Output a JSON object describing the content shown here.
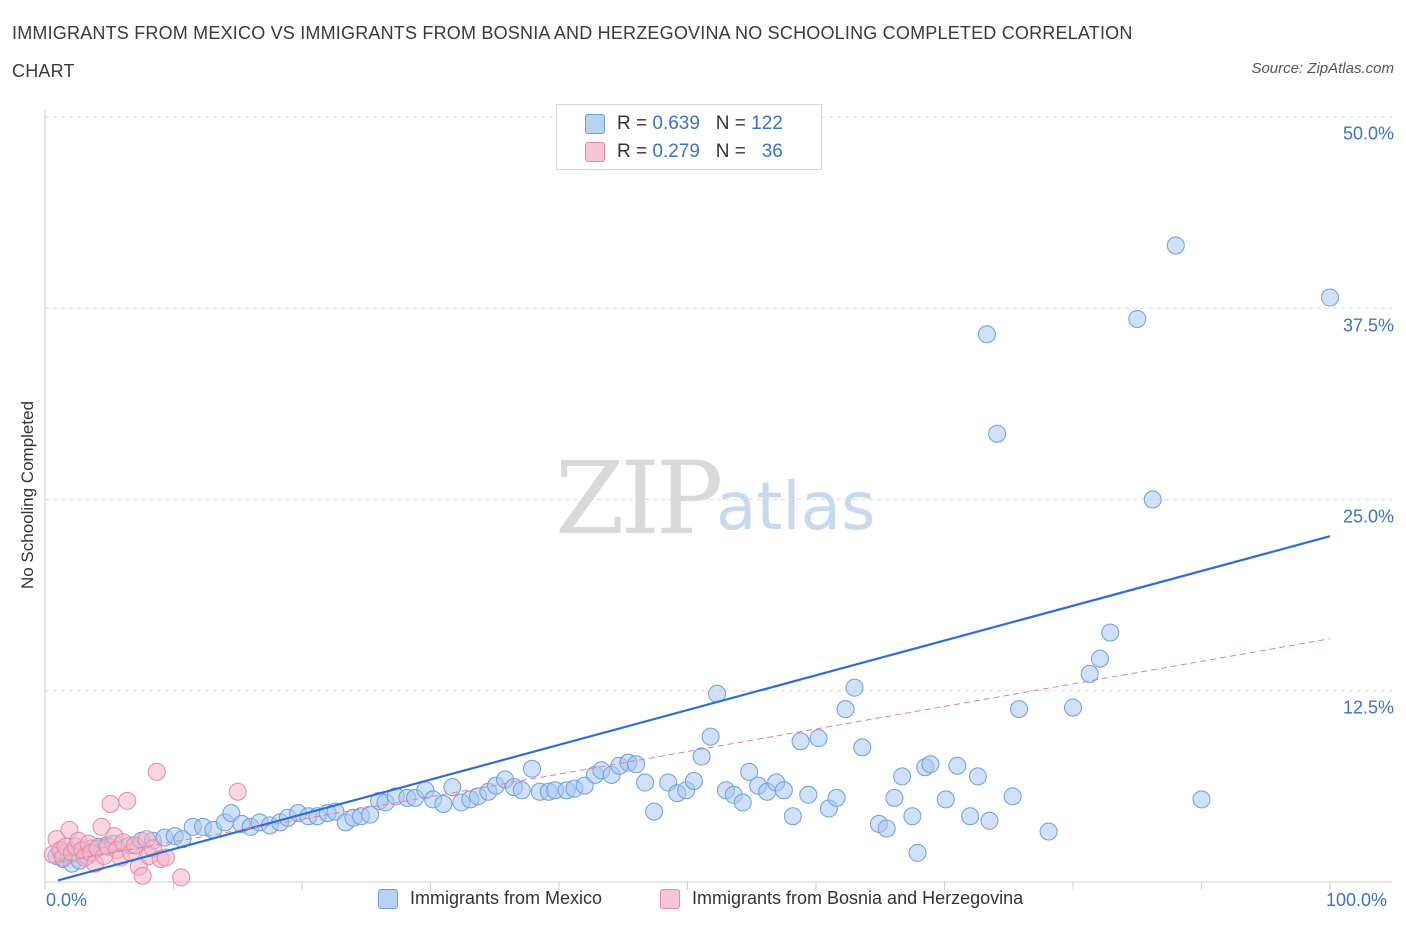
{
  "title": "IMMIGRANTS FROM MEXICO VS IMMIGRANTS FROM BOSNIA AND HERZEGOVINA NO SCHOOLING COMPLETED CORRELATION CHART",
  "source": "Source: ZipAtlas.com",
  "watermark": {
    "zip": "ZIP",
    "atlas": "atlas"
  },
  "legend": {
    "mexico": {
      "r_label": "R =",
      "r_value": "0.639",
      "n_label": "N =",
      "n_value": "122",
      "color": "#a9c6ee"
    },
    "bosnia": {
      "r_label": "R =",
      "r_value": "0.279",
      "n_label": "N =",
      "n_value": "36",
      "color": "#f4b4c8"
    }
  },
  "chart_data": {
    "type": "scatter",
    "title": "IMMIGRANTS FROM MEXICO VS IMMIGRANTS FROM BOSNIA AND HERZEGOVINA NO SCHOOLING COMPLETED CORRELATION CHART",
    "xlabel": "",
    "ylabel": "No Schooling Completed",
    "xlim": [
      0,
      100
    ],
    "ylim": [
      0,
      50
    ],
    "x_tick_labels": [
      "0.0%",
      "100.0%"
    ],
    "y_tick_labels": [
      "50.0%",
      "37.5%",
      "25.0%",
      "12.5%"
    ],
    "y_ticks": [
      50,
      37.5,
      25,
      12.5
    ],
    "grid": true,
    "series": [
      {
        "name": "Immigrants from Mexico",
        "color": "#a9c6ee",
        "stroke": "#6b9fe0",
        "trend": {
          "x": [
            1,
            100
          ],
          "y": [
            0.1,
            22.6
          ],
          "color": "#2f6fd1",
          "style": "solid"
        },
        "points": [
          [
            0.9,
            1.7
          ],
          [
            1.4,
            1.5
          ],
          [
            1.9,
            1.8
          ],
          [
            2.4,
            1.9
          ],
          [
            3.0,
            2.0
          ],
          [
            3.6,
            2.2
          ],
          [
            4.2,
            2.3
          ],
          [
            4.8,
            2.4
          ],
          [
            5.3,
            2.5
          ],
          [
            1.2,
            2.0
          ],
          [
            2.1,
            1.2
          ],
          [
            2.7,
            1.4
          ],
          [
            3.3,
            1.7
          ],
          [
            6.6,
            2.4
          ],
          [
            7.5,
            2.7
          ],
          [
            8.4,
            2.7
          ],
          [
            9.3,
            2.9
          ],
          [
            10.1,
            3.0
          ],
          [
            10.7,
            2.8
          ],
          [
            11.5,
            3.6
          ],
          [
            12.3,
            3.6
          ],
          [
            13.1,
            3.4
          ],
          [
            14.0,
            3.9
          ],
          [
            14.5,
            4.5
          ],
          [
            15.3,
            3.8
          ],
          [
            16.0,
            3.6
          ],
          [
            16.7,
            3.9
          ],
          [
            17.5,
            3.7
          ],
          [
            18.3,
            3.9
          ],
          [
            18.9,
            4.2
          ],
          [
            19.7,
            4.5
          ],
          [
            20.5,
            4.3
          ],
          [
            21.2,
            4.3
          ],
          [
            22.0,
            4.5
          ],
          [
            22.6,
            4.6
          ],
          [
            23.4,
            3.9
          ],
          [
            24.0,
            4.2
          ],
          [
            24.6,
            4.3
          ],
          [
            25.3,
            4.4
          ],
          [
            26.0,
            5.3
          ],
          [
            26.5,
            5.2
          ],
          [
            27.3,
            5.6
          ],
          [
            28.2,
            5.5
          ],
          [
            28.8,
            5.5
          ],
          [
            29.6,
            6.0
          ],
          [
            30.2,
            5.4
          ],
          [
            31.0,
            5.1
          ],
          [
            31.7,
            6.2
          ],
          [
            32.4,
            5.2
          ],
          [
            33.1,
            5.4
          ],
          [
            33.7,
            5.6
          ],
          [
            34.5,
            5.9
          ],
          [
            35.1,
            6.3
          ],
          [
            35.8,
            6.7
          ],
          [
            36.5,
            6.2
          ],
          [
            37.1,
            6.0
          ],
          [
            37.9,
            7.4
          ],
          [
            38.5,
            5.9
          ],
          [
            39.2,
            5.9
          ],
          [
            39.7,
            6.0
          ],
          [
            40.6,
            6.0
          ],
          [
            41.2,
            6.1
          ],
          [
            42.0,
            6.3
          ],
          [
            42.8,
            7.0
          ],
          [
            43.3,
            7.3
          ],
          [
            44.1,
            7.0
          ],
          [
            44.7,
            7.6
          ],
          [
            45.4,
            7.8
          ],
          [
            46.0,
            7.7
          ],
          [
            46.7,
            6.5
          ],
          [
            47.4,
            4.6
          ],
          [
            48.5,
            6.5
          ],
          [
            49.2,
            5.8
          ],
          [
            49.9,
            6.0
          ],
          [
            50.5,
            6.6
          ],
          [
            51.1,
            8.2
          ],
          [
            51.8,
            9.5
          ],
          [
            52.3,
            12.3
          ],
          [
            53.0,
            6.0
          ],
          [
            53.6,
            5.7
          ],
          [
            54.3,
            5.2
          ],
          [
            54.8,
            7.2
          ],
          [
            55.5,
            6.3
          ],
          [
            56.2,
            5.9
          ],
          [
            56.9,
            6.5
          ],
          [
            57.5,
            6.0
          ],
          [
            58.2,
            4.3
          ],
          [
            58.8,
            9.2
          ],
          [
            59.4,
            5.7
          ],
          [
            60.2,
            9.4
          ],
          [
            61.0,
            4.8
          ],
          [
            61.6,
            5.5
          ],
          [
            62.3,
            11.3
          ],
          [
            63.0,
            12.7
          ],
          [
            63.6,
            8.8
          ],
          [
            64.9,
            3.8
          ],
          [
            65.5,
            3.5
          ],
          [
            66.1,
            5.5
          ],
          [
            66.7,
            6.9
          ],
          [
            67.5,
            4.3
          ],
          [
            67.9,
            1.9
          ],
          [
            68.5,
            7.5
          ],
          [
            68.9,
            7.7
          ],
          [
            70.1,
            5.4
          ],
          [
            71.0,
            7.6
          ],
          [
            72.0,
            4.3
          ],
          [
            72.6,
            6.9
          ],
          [
            73.5,
            4.0
          ],
          [
            74.1,
            29.3
          ],
          [
            73.3,
            35.8
          ],
          [
            75.3,
            5.6
          ],
          [
            75.8,
            11.3
          ],
          [
            78.1,
            3.3
          ],
          [
            80.0,
            11.4
          ],
          [
            81.3,
            13.6
          ],
          [
            82.1,
            14.6
          ],
          [
            82.9,
            16.3
          ],
          [
            85.0,
            36.8
          ],
          [
            86.2,
            25.0
          ],
          [
            88.0,
            41.6
          ],
          [
            90.0,
            5.4
          ],
          [
            100.0,
            38.2
          ]
        ]
      },
      {
        "name": "Immigrants from Bosnia and Herzegovina",
        "color": "#f4b4c8",
        "stroke": "#e58aa9",
        "trend": {
          "x": [
            1,
            100
          ],
          "y": [
            1.3,
            15.9
          ],
          "color": "#e07fa0",
          "style": "dashed"
        },
        "points": [
          [
            0.6,
            1.8
          ],
          [
            0.9,
            2.8
          ],
          [
            1.2,
            2.1
          ],
          [
            1.4,
            1.6
          ],
          [
            1.6,
            2.3
          ],
          [
            1.9,
            3.4
          ],
          [
            2.1,
            1.9
          ],
          [
            2.4,
            2.3
          ],
          [
            2.6,
            2.7
          ],
          [
            2.9,
            2.1
          ],
          [
            3.1,
            1.6
          ],
          [
            3.4,
            2.5
          ],
          [
            3.6,
            1.9
          ],
          [
            3.9,
            1.2
          ],
          [
            4.1,
            2.2
          ],
          [
            4.4,
            3.6
          ],
          [
            4.6,
            1.7
          ],
          [
            4.9,
            2.3
          ],
          [
            5.1,
            5.1
          ],
          [
            5.4,
            3.0
          ],
          [
            5.6,
            2.1
          ],
          [
            5.9,
            1.6
          ],
          [
            6.1,
            2.6
          ],
          [
            6.4,
            5.3
          ],
          [
            6.7,
            1.9
          ],
          [
            7.0,
            2.4
          ],
          [
            7.3,
            1.0
          ],
          [
            7.6,
            0.4
          ],
          [
            7.9,
            2.8
          ],
          [
            8.1,
            1.7
          ],
          [
            8.4,
            2.2
          ],
          [
            8.7,
            7.2
          ],
          [
            9.0,
            1.5
          ],
          [
            9.4,
            1.6
          ],
          [
            10.6,
            0.3
          ],
          [
            15.0,
            5.9
          ]
        ]
      }
    ]
  },
  "bottom_legend": {
    "mexico_label": "Immigrants from Mexico",
    "bosnia_label": "Immigrants from Bosnia and Herzegovina"
  }
}
